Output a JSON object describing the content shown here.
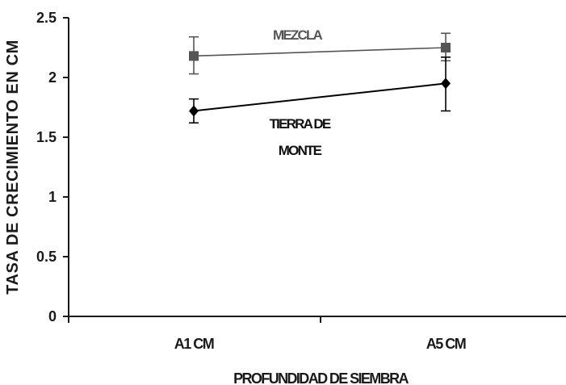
{
  "chart_data": {
    "type": "line",
    "xlabel": "PROFUNDIDAD DE SIEMBRA",
    "ylabel": "TASA DE CRECIMIENTO EN CM",
    "categories": [
      "A1 CM",
      "A5 CM"
    ],
    "ylim": [
      0,
      2.5
    ],
    "yticks": [
      "0",
      "0.5",
      "1",
      "1.5",
      "2",
      "2.5"
    ],
    "grid": false,
    "series": [
      {
        "name": "MEZCLA",
        "values": [
          2.18,
          2.25
        ],
        "error_low": [
          2.03,
          2.14
        ],
        "error_high": [
          2.34,
          2.37
        ],
        "marker": "square",
        "color": "#555555"
      },
      {
        "name": "TIERRA DE MONTE",
        "values": [
          1.72,
          1.95
        ],
        "error_low": [
          1.62,
          1.72
        ],
        "error_high": [
          1.82,
          2.17
        ],
        "marker": "diamond",
        "color": "#000000"
      }
    ]
  }
}
